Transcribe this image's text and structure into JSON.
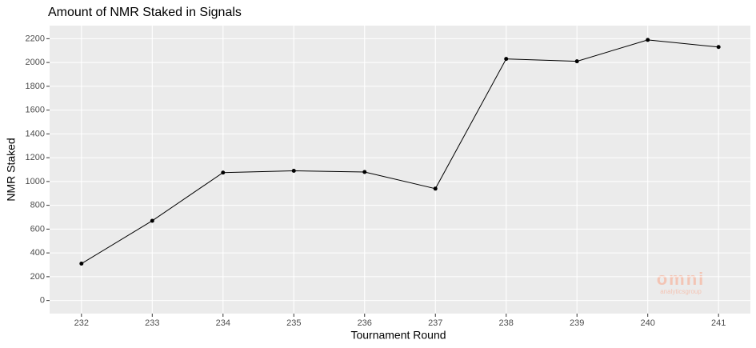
{
  "chart_data": {
    "type": "line",
    "title": "Amount of NMR Staked in Signals",
    "x_label": "Tournament Round",
    "y_label": "NMR Staked",
    "x": [
      232,
      233,
      234,
      235,
      236,
      237,
      238,
      239,
      240,
      241
    ],
    "series": [
      {
        "name": "NMR Staked",
        "color": "#000000",
        "values": [
          310,
          670,
          1075,
          1090,
          1080,
          940,
          2030,
          2010,
          2190,
          2130
        ]
      }
    ],
    "xlim": [
      231.55,
      241.45
    ],
    "xticks": [
      232,
      233,
      234,
      235,
      236,
      237,
      238,
      239,
      240,
      241
    ],
    "ylim": [
      -110,
      2310
    ],
    "yticks": [
      0,
      200,
      400,
      600,
      800,
      1000,
      1200,
      1400,
      1600,
      1800,
      2000,
      2200
    ],
    "grid": true,
    "watermark": {
      "brand": "omni",
      "sub": "analyticsgroup"
    }
  }
}
